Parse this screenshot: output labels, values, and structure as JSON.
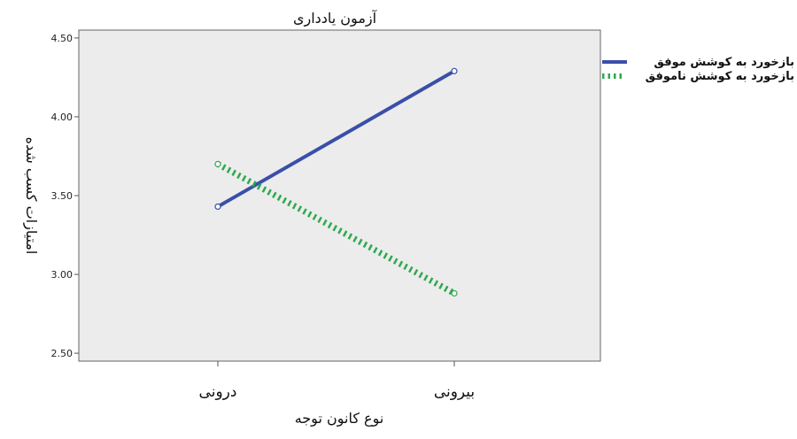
{
  "chart_data": {
    "type": "line",
    "title": "آزمون یادداری",
    "xlabel": "نوع کانون توجه",
    "ylabel": "امتیازات کسب شده",
    "categories": [
      "درونی",
      "بیرونی"
    ],
    "ylim": [
      2.45,
      4.55
    ],
    "yticks": [
      2.5,
      3.0,
      3.5,
      4.0,
      4.5
    ],
    "ytick_labels": [
      "2.50",
      "3.00",
      "3.50",
      "4.00",
      "4.50"
    ],
    "grid": false,
    "legend_position": "right",
    "series": [
      {
        "name": "بازخورد به کوشش موفق",
        "values": [
          3.43,
          4.29
        ],
        "color": "#3a4fa8",
        "style": "solid"
      },
      {
        "name": "بازخورد به کوشش ناموفق",
        "values": [
          3.7,
          2.88
        ],
        "color": "#2fa84f",
        "style": "dotted"
      }
    ]
  },
  "colors": {
    "plot_background": "#ececec",
    "axis": "#555555"
  }
}
